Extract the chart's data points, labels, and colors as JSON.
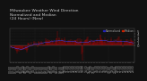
{
  "title": "Milwaukee Weather Wind Direction\nNormalized and Median\n(24 Hours) (New)",
  "title_fontsize": 3.2,
  "background_color": "#111111",
  "plot_bg_color": "#111111",
  "grid_color": "#333333",
  "ylim": [
    -6,
    6
  ],
  "ytick_values": [
    5,
    4,
    3,
    2,
    1,
    0
  ],
  "ylabel_fontsize": 2.8,
  "xlabel_fontsize": 2.2,
  "bar_color": "#cc0000",
  "median_color": "#4444ff",
  "legend_labels": [
    "Normalized",
    "Median"
  ],
  "legend_colors": [
    "#2222bb",
    "#cc2200"
  ],
  "n_points": 288,
  "noise_seed": 42,
  "title_color": "#cccccc",
  "tick_color": "#aaaaaa",
  "spine_color": "#555555"
}
